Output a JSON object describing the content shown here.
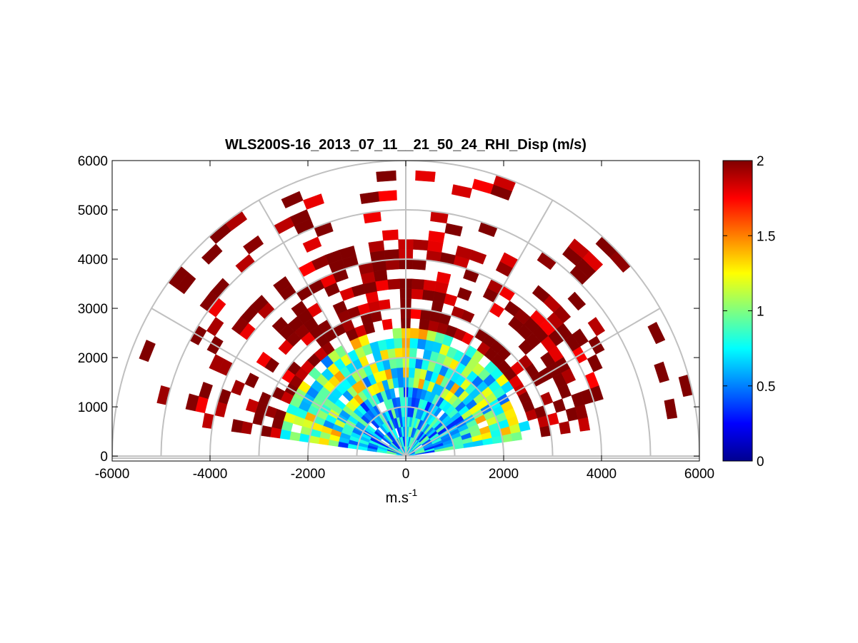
{
  "chart_data": {
    "type": "heatmap",
    "subtype": "polar-rhi-sector",
    "title": "WLS200S-16_2013_07_11__21_50_24_RHI_Disp (m/s)",
    "xlabel_base": "m.s",
    "xlabel_sup": "-1",
    "ylabel": "",
    "xlim": [
      -6000,
      6000
    ],
    "ylim": [
      -100,
      6000
    ],
    "xticks": [
      -6000,
      -4000,
      -2000,
      0,
      2000,
      4000,
      6000
    ],
    "yticks": [
      0,
      1000,
      2000,
      3000,
      4000,
      5000,
      6000
    ],
    "polar_range_rings": [
      1000,
      2000,
      3000,
      4000,
      5000,
      6000
    ],
    "polar_spokes_deg": [
      0,
      30,
      60,
      90,
      120,
      150,
      180
    ],
    "colorbar": {
      "min": 0,
      "max": 2,
      "ticks": [
        "0",
        "0.5",
        "1",
        "1.5",
        "2"
      ],
      "colormap": "jet"
    },
    "scan": {
      "elevation_min_deg": 8,
      "elevation_max_deg": 172,
      "beam_step_deg": 4,
      "gate_step_m": 200,
      "max_range_m": 6000
    },
    "region_values": [
      {
        "range_m": [
          0,
          1400
        ],
        "value_mean": 0.65,
        "note": "near field mostly cyan/blue"
      },
      {
        "range_m": [
          1400,
          2600
        ],
        "value_mean": 0.95,
        "note": "mid field cyan/green with yellow"
      },
      {
        "range_m": [
          2600,
          6000
        ],
        "value_mean": 1.85,
        "note": "far field sparse red/dark red"
      }
    ]
  },
  "colors": {
    "grid": "#c0c0c0",
    "axes": "#000000",
    "background": "#ffffff"
  }
}
